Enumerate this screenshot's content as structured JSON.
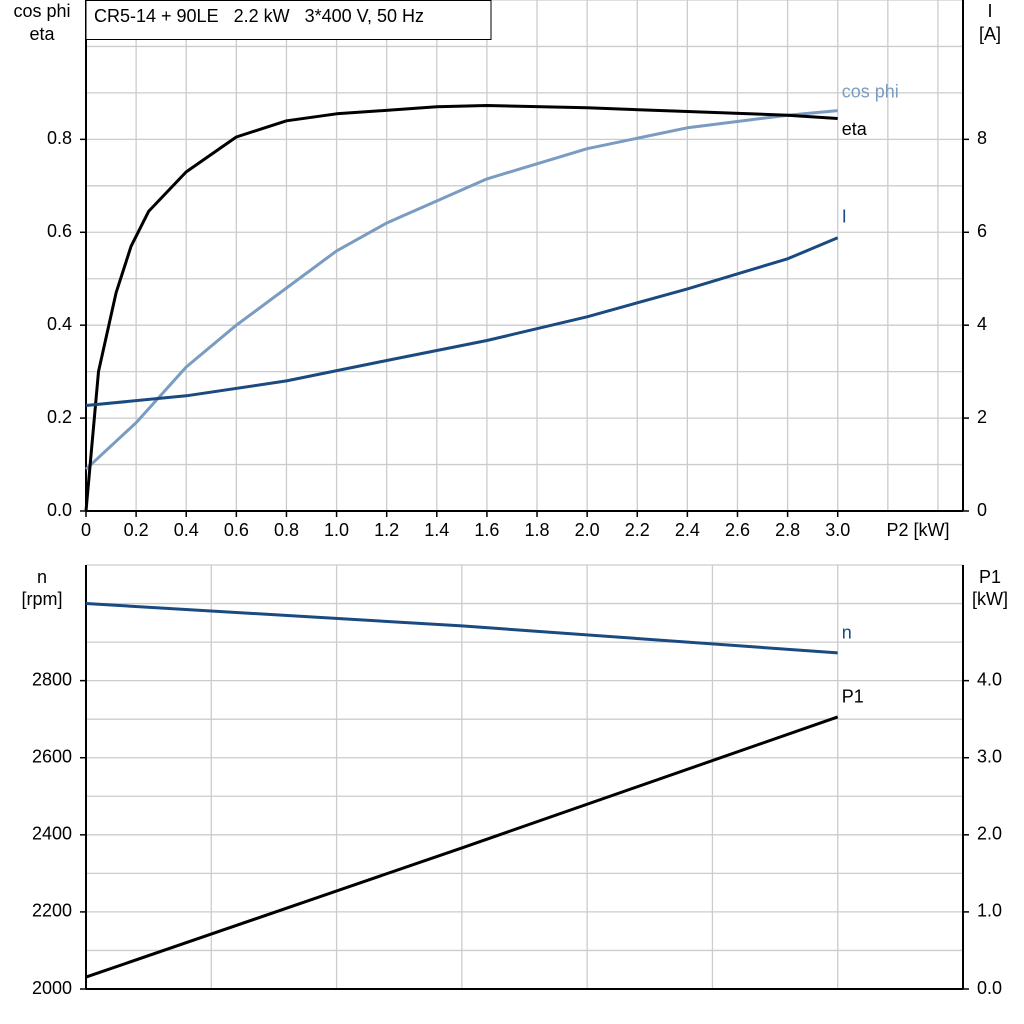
{
  "chart_data": [
    {
      "type": "line",
      "title": "CR5-14 + 90LE   2.2 kW   3*400 V, 50 Hz",
      "ylabel": [
        "cos phi",
        "eta"
      ],
      "y2label": [
        "I",
        "[A]"
      ],
      "xlabel": "P2 [kW]",
      "xlim": [
        0,
        3.5
      ],
      "ylim": [
        0,
        1.1
      ],
      "y2lim": [
        0,
        11
      ],
      "xticks": [
        {
          "value": 0,
          "label": "0"
        },
        0.2,
        0.4,
        0.6,
        0.8,
        {
          "value": 1,
          "label": "1.0"
        },
        1.2,
        1.4,
        1.6,
        1.8,
        {
          "value": 2,
          "label": "2.0"
        },
        2.2,
        2.4,
        2.6,
        2.8,
        {
          "value": 3,
          "label": "3.0"
        }
      ],
      "yticks": [
        {
          "value": 0,
          "label": "0.0"
        },
        0.2,
        0.4,
        0.6,
        0.8
      ],
      "y2ticks": [
        0,
        2,
        4,
        6,
        8
      ],
      "grid_xticks": [
        0,
        0.2,
        0.4,
        0.6,
        0.8,
        1,
        1.2,
        1.4,
        1.6,
        1.8,
        2,
        2.2,
        2.4,
        2.6,
        2.8,
        3,
        3.2,
        3.4
      ],
      "grid_yticks": [
        0,
        0.1,
        0.2,
        0.3,
        0.4,
        0.5,
        0.6,
        0.7,
        0.8,
        0.9,
        1,
        1.1
      ],
      "series": [
        {
          "name": "cos phi",
          "color": "#7a9cc0",
          "x": [
            0,
            0.2,
            0.4,
            0.6,
            0.8,
            1,
            1.2,
            1.6,
            2,
            2.4,
            2.8,
            3
          ],
          "values": [
            0.09,
            0.19,
            0.31,
            0.4,
            0.48,
            0.56,
            0.62,
            0.715,
            0.78,
            0.825,
            0.852,
            0.862
          ]
        },
        {
          "name": "eta",
          "color": "#000000",
          "x": [
            0,
            0.05,
            0.12,
            0.18,
            0.25,
            0.4,
            0.6,
            0.8,
            1,
            1.4,
            1.6,
            2,
            2.4,
            2.8,
            3
          ],
          "values": [
            0,
            0.3,
            0.47,
            0.57,
            0.645,
            0.73,
            0.805,
            0.84,
            0.855,
            0.87,
            0.873,
            0.868,
            0.86,
            0.852,
            0.845
          ]
        },
        {
          "name": "I",
          "color": "#1a4a80",
          "axis": "y2",
          "x": [
            0,
            0.4,
            0.8,
            1.2,
            1.6,
            2,
            2.4,
            2.8,
            3
          ],
          "values": [
            2.27,
            2.48,
            2.8,
            3.24,
            3.67,
            4.18,
            4.78,
            5.43,
            5.88
          ]
        }
      ]
    },
    {
      "type": "line",
      "ylabel": [
        "n",
        "[rpm]"
      ],
      "y2label": [
        "P1",
        "[kW]"
      ],
      "xlim": [
        0,
        3.5
      ],
      "ylim": [
        2000,
        3100
      ],
      "y2lim": [
        0,
        5.5
      ],
      "yticks": [
        2000,
        2200,
        2400,
        2600,
        2800
      ],
      "y2ticks": [
        {
          "value": 0,
          "label": "0.0"
        },
        {
          "value": 1,
          "label": "1.0"
        },
        {
          "value": 2,
          "label": "2.0"
        },
        {
          "value": 3,
          "label": "3.0"
        },
        {
          "value": 4,
          "label": "4.0"
        }
      ],
      "grid_xticks": [
        0,
        0.5,
        1,
        1.5,
        2,
        2.5,
        3
      ],
      "grid_yticks": [
        2000,
        2100,
        2200,
        2300,
        2400,
        2500,
        2600,
        2700,
        2800,
        2900,
        3000,
        3100
      ],
      "series": [
        {
          "name": "n",
          "color": "#1a4a80",
          "x": [
            0,
            1.5,
            3
          ],
          "values": [
            3000,
            2942,
            2872
          ]
        },
        {
          "name": "P1",
          "color": "#000000",
          "axis": "y2",
          "x": [
            0,
            1.5,
            3
          ],
          "values": [
            0.155,
            1.83,
            3.53
          ]
        }
      ]
    }
  ]
}
